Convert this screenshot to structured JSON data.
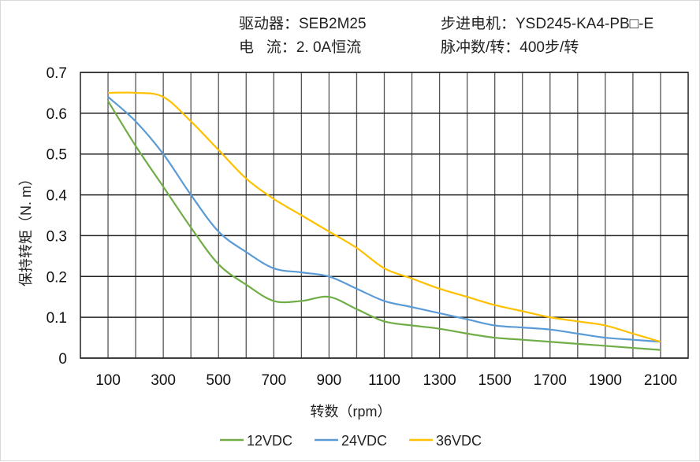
{
  "header": {
    "driver": "驱动器：SEB2M25",
    "motor": "步进电机：YSD245-KA4-PB□-E",
    "current": "电   流：2. 0A恒流",
    "pulses": "脉冲数/转：400步/转"
  },
  "chart_data": {
    "type": "line",
    "xlabel": "转数（rpm）",
    "ylabel": "保持转矩（N. m）",
    "xlim": [
      0,
      2200
    ],
    "ylim": [
      0,
      0.7
    ],
    "grid": true,
    "legend_position": "bottom",
    "x_ticks": [
      100,
      300,
      500,
      700,
      900,
      1100,
      1300,
      1500,
      1700,
      1900,
      2100
    ],
    "y_ticks": [
      "0",
      "0.1",
      "0.2",
      "0.3",
      "0.4",
      "0.5",
      "0.6",
      "0.7"
    ],
    "x": [
      100,
      200,
      300,
      400,
      500,
      600,
      700,
      800,
      900,
      1000,
      1100,
      1200,
      1300,
      1400,
      1500,
      1600,
      1700,
      1800,
      1900,
      2000,
      2100
    ],
    "series": [
      {
        "name": "12VDC",
        "color": "#70ad47",
        "values": [
          0.63,
          0.52,
          0.42,
          0.32,
          0.23,
          0.18,
          0.14,
          0.14,
          0.15,
          0.12,
          0.09,
          0.08,
          0.072,
          0.06,
          0.05,
          0.045,
          0.04,
          0.035,
          0.03,
          0.025,
          0.02
        ]
      },
      {
        "name": "24VDC",
        "color": "#5b9bd5",
        "values": [
          0.64,
          0.58,
          0.5,
          0.4,
          0.31,
          0.26,
          0.22,
          0.21,
          0.2,
          0.17,
          0.14,
          0.125,
          0.11,
          0.095,
          0.08,
          0.075,
          0.07,
          0.06,
          0.05,
          0.045,
          0.04
        ]
      },
      {
        "name": "36VDC",
        "color": "#ffc000",
        "values": [
          0.65,
          0.65,
          0.64,
          0.58,
          0.51,
          0.44,
          0.39,
          0.35,
          0.31,
          0.27,
          0.22,
          0.195,
          0.17,
          0.15,
          0.13,
          0.115,
          0.1,
          0.09,
          0.08,
          0.06,
          0.04
        ]
      }
    ]
  }
}
